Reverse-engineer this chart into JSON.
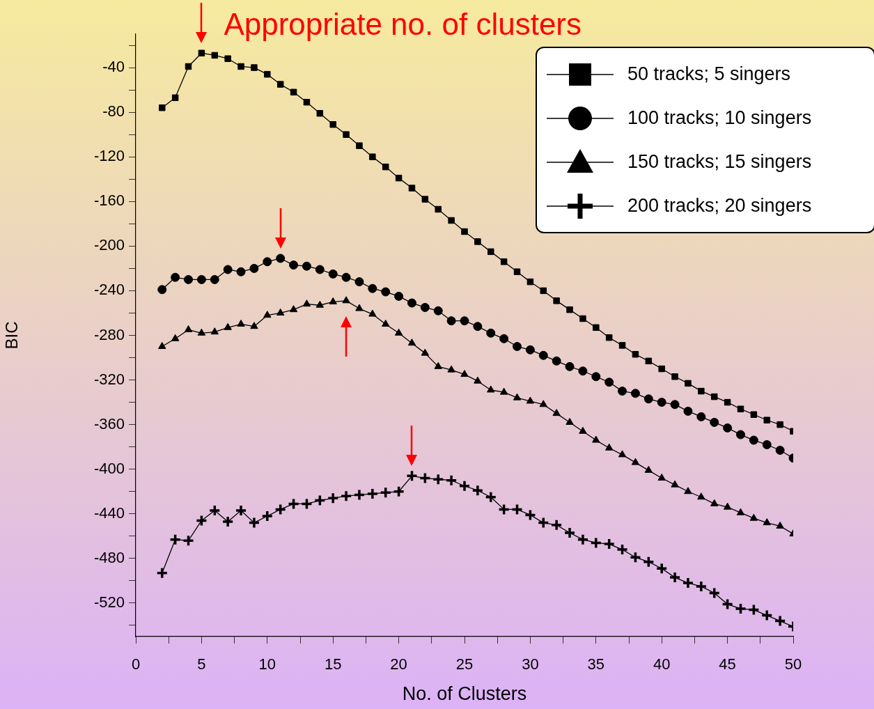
{
  "chart_data": {
    "type": "line",
    "xlabel": "No. of Clusters",
    "ylabel": "BIC",
    "x": [
      2,
      3,
      4,
      5,
      6,
      7,
      8,
      9,
      10,
      11,
      12,
      13,
      14,
      15,
      16,
      17,
      18,
      19,
      20,
      21,
      22,
      23,
      24,
      25,
      26,
      27,
      28,
      29,
      30,
      31,
      32,
      33,
      34,
      35,
      36,
      37,
      38,
      39,
      40,
      41,
      42,
      43,
      44,
      45,
      46,
      47,
      48,
      49,
      50
    ],
    "xlim": [
      0,
      50
    ],
    "xticks": [
      0,
      {
        "value": 2.5,
        "label": null
      },
      5,
      {
        "value": 7.5,
        "label": null
      },
      10,
      {
        "value": 12.5,
        "label": null
      },
      15,
      {
        "value": 17.5,
        "label": null
      },
      20,
      {
        "value": 22.5,
        "label": null
      },
      25,
      {
        "value": 27.5,
        "label": null
      },
      30,
      {
        "value": 32.5,
        "label": null
      },
      35,
      {
        "value": 37.5,
        "label": null
      },
      40,
      {
        "value": 42.5,
        "label": null
      },
      45,
      {
        "value": 47.5,
        "label": null
      },
      50
    ],
    "ylim": [
      -550,
      -10
    ],
    "yticks": [
      {
        "value": -20,
        "label": null
      },
      -40,
      {
        "value": -60,
        "label": null
      },
      -80,
      {
        "value": -100,
        "label": null
      },
      -120,
      {
        "value": -140,
        "label": null
      },
      -160,
      {
        "value": -180,
        "label": null
      },
      -200,
      {
        "value": -220,
        "label": null
      },
      -240,
      {
        "value": -260,
        "label": null
      },
      -280,
      {
        "value": -300,
        "label": null
      },
      -320,
      {
        "value": -340,
        "label": null
      },
      -360,
      {
        "value": -380,
        "label": null
      },
      -400,
      {
        "value": -420,
        "label": null
      },
      -440,
      {
        "value": -460,
        "label": null
      },
      -480,
      {
        "value": -500,
        "label": null
      },
      -520,
      {
        "value": -540,
        "label": null
      }
    ],
    "grid": false,
    "legend": "top right",
    "line_style": "solid",
    "annotations": [
      {
        "text": "Appropriate no. of clusters",
        "x": 5,
        "y": -27
      }
    ],
    "series": [
      {
        "name": "50 tracks; 5 singers",
        "color": "#000000",
        "marker": "square",
        "values": [
          -76,
          -67,
          -39,
          -27,
          -29,
          -32,
          -39,
          -40,
          -46,
          -55,
          -62,
          -71,
          -81,
          -91,
          -100,
          -110,
          -120,
          -129,
          -139,
          -148,
          -158,
          -167,
          -177,
          -187,
          -196,
          -205,
          -214,
          -223,
          -232,
          -240,
          -249,
          -257,
          -265,
          -273,
          -282,
          -289,
          -297,
          -303,
          -310,
          -317,
          -323,
          -330,
          -335,
          -340,
          -346,
          -351,
          -356,
          -360,
          -366
        ]
      },
      {
        "name": "100 tracks; 10 singers",
        "color": "#000000",
        "marker": "circle",
        "values": [
          -239,
          -228,
          -230,
          -230,
          -230,
          -221,
          -223,
          -220,
          -214,
          -211,
          -217,
          -218,
          -221,
          -225,
          -228,
          -232,
          -238,
          -241,
          -245,
          -251,
          -255,
          -258,
          -267,
          -267,
          -272,
          -278,
          -283,
          -290,
          -293,
          -298,
          -303,
          -308,
          -312,
          -317,
          -322,
          -330,
          -332,
          -337,
          -340,
          -342,
          -348,
          -353,
          -358,
          -363,
          -369,
          -374,
          -378,
          -383,
          -390
        ]
      },
      {
        "name": "150 tracks; 15 singers",
        "color": "#000000",
        "marker": "triangle",
        "values": [
          -290,
          -283,
          -275,
          -278,
          -277,
          -273,
          -270,
          -272,
          -262,
          -260,
          -257,
          -252,
          -253,
          -250,
          -249,
          -256,
          -261,
          -270,
          -278,
          -287,
          -296,
          -308,
          -311,
          -315,
          -321,
          -329,
          -331,
          -336,
          -339,
          -342,
          -350,
          -358,
          -366,
          -374,
          -381,
          -387,
          -394,
          -401,
          -408,
          -414,
          -420,
          -425,
          -431,
          -434,
          -439,
          -444,
          -448,
          -451,
          -458
        ]
      },
      {
        "name": "200 tracks; 20 singers",
        "color": "#000000",
        "marker": "cross",
        "values": [
          -493,
          -463,
          -464,
          -446,
          -437,
          -447,
          -437,
          -448,
          -442,
          -436,
          -431,
          -431,
          -428,
          -426,
          -424,
          -423,
          -422,
          -421,
          -420,
          -406,
          -408,
          -409,
          -410,
          -415,
          -419,
          -425,
          -436,
          -436,
          -441,
          -448,
          -450,
          -457,
          -463,
          -466,
          -467,
          -472,
          -479,
          -483,
          -489,
          -497,
          -502,
          -505,
          -511,
          -521,
          -525,
          -526,
          -531,
          -536,
          -541
        ]
      }
    ]
  }
}
